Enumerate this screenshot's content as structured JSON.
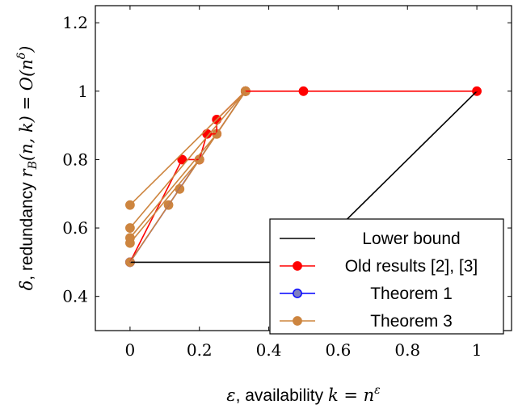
{
  "chart_data": {
    "type": "line",
    "xlabel": {
      "sym": "ε",
      "text": ", availability ",
      "math": "k = n",
      "sup": "ε"
    },
    "ylabel": {
      "sym": "δ",
      "text": ", redundancy ",
      "math": "r",
      "sub": "B",
      "tail": "(n, k) = O(n",
      "sup": "δ",
      "end": ")"
    },
    "xlim": [
      -0.1,
      1.1
    ],
    "ylim": [
      0.3,
      1.25
    ],
    "xticks": [
      0,
      0.2,
      0.4,
      0.6,
      0.8,
      1
    ],
    "xtick_labels": [
      "0",
      "0.2",
      "0.4",
      "0.6",
      "0.8",
      "1"
    ],
    "yticks": [
      0.4,
      0.6,
      0.8,
      1,
      1.2
    ],
    "ytick_labels": [
      "0.4",
      "0.6",
      "0.8",
      "1",
      "1.2"
    ],
    "legend_position": "bottom-right",
    "series": [
      {
        "name": "Lower bound",
        "color": "#000000",
        "marker": "none",
        "lines": [
          [
            [
              0,
              0.5
            ],
            [
              0.5,
              0.5
            ],
            [
              1,
              1
            ]
          ]
        ]
      },
      {
        "name": "Old results [2], [3]",
        "color": "#ff0000",
        "marker": "circle",
        "lines": [
          [
            [
              0,
              0.5
            ],
            [
              0.15,
              0.8
            ],
            [
              0.2,
              0.8
            ]
          ],
          [
            [
              0.2,
              0.8
            ],
            [
              0.222,
              0.875
            ],
            [
              0.25,
              0.875
            ],
            [
              0.25,
              0.917
            ],
            [
              0.333,
              1
            ],
            [
              0.5,
              1
            ],
            [
              1,
              1
            ]
          ]
        ]
      },
      {
        "name": "Theorem 1",
        "color": "#0000ff",
        "marker": "circle",
        "marker_fill": "#8080c0",
        "lines": [
          [
            [
              0,
              0.5
            ],
            [
              0.333,
              1
            ]
          ]
        ]
      },
      {
        "name": "Theorem 3",
        "color": "#cd853f",
        "marker": "circle",
        "lines": [
          [
            [
              0,
              0.5
            ],
            [
              0.111,
              0.667
            ],
            [
              0.143,
              0.714
            ],
            [
              0.333,
              1
            ]
          ],
          [
            [
              0,
              0.556
            ],
            [
              0.2,
              0.8
            ],
            [
              0.333,
              1
            ]
          ],
          [
            [
              0,
              0.571
            ],
            [
              0.25,
              0.875
            ],
            [
              0.333,
              1
            ]
          ],
          [
            [
              0,
              0.6
            ],
            [
              0.333,
              1
            ]
          ],
          [
            [
              0,
              0.667
            ],
            [
              0.333,
              1
            ]
          ]
        ]
      }
    ]
  }
}
